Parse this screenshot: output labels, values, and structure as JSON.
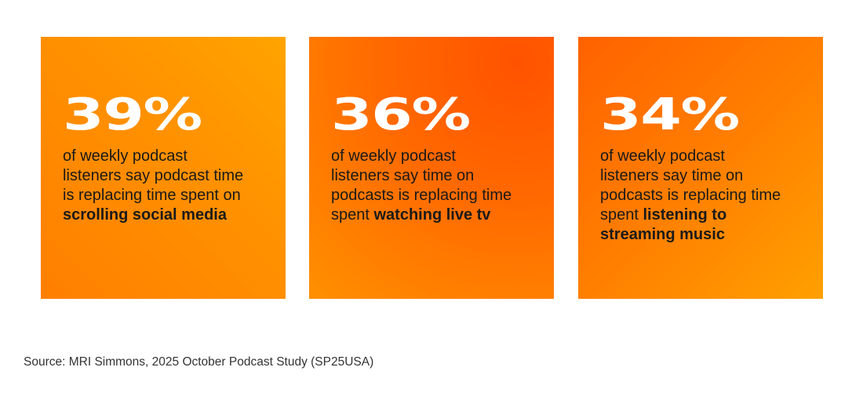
{
  "cards": [
    {
      "stat": "39%",
      "text": "of weekly podcast listeners say podcast time is replacing time spent on",
      "emphasis": "scrolling social media"
    },
    {
      "stat": "36%",
      "text": "of weekly podcast listeners say time on podcasts is replacing time spent",
      "emphasis": "watching live tv"
    },
    {
      "stat": "34%",
      "text": "of weekly podcast listeners say time on podcasts is replacing time spent",
      "emphasis": "listening to streaming music"
    }
  ],
  "source": "Source: MRI Simmons, 2025 October Podcast Study (SP25USA)"
}
